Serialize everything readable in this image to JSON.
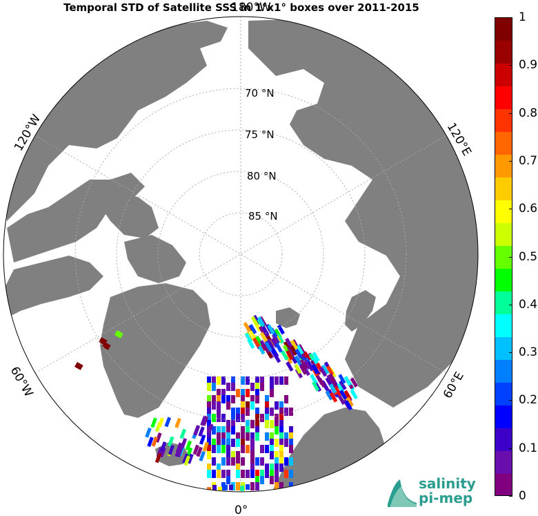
{
  "title": "Temporal STD of Satellite SSS in 1°x1° boxes over 2011-2015",
  "map": {
    "projection": "north-polar-stereographic",
    "lat_labels": [
      "70 °N",
      "75 °N",
      "80 °N",
      "85 °N"
    ],
    "lat_values": [
      70,
      75,
      80,
      85
    ],
    "lon_labels": {
      "top": "180°W",
      "left_upper": "120°W",
      "left_lower": "60°W",
      "bottom": "0°",
      "right_lower": "60°E",
      "right_upper": "120°E"
    },
    "land_color": "#808080",
    "ice_color": "#ffffff"
  },
  "colorbar": {
    "min": 0,
    "max": 1,
    "ticks": [
      "0",
      "0.1",
      "0.2",
      "0.3",
      "0.4",
      "0.5",
      "0.6",
      "0.7",
      "0.8",
      "0.9",
      "1"
    ],
    "colors": [
      "#800080",
      "#6a0dad",
      "#3d00c8",
      "#0000ff",
      "#0040ff",
      "#0080ff",
      "#00c0ff",
      "#00ffff",
      "#00ff99",
      "#00ff00",
      "#66ff00",
      "#ccff00",
      "#ffff00",
      "#ffcc00",
      "#ff9900",
      "#ff6600",
      "#ff3300",
      "#ff0000",
      "#cc0000",
      "#990000",
      "#800000"
    ]
  },
  "logo": {
    "line1": "salinity",
    "line2": "pi-mep"
  }
}
